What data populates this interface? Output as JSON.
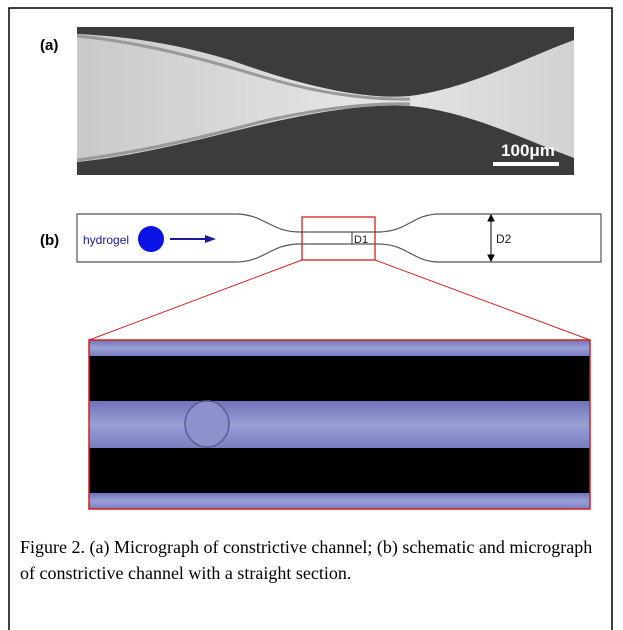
{
  "figure": {
    "panel_a": {
      "label": "(a)",
      "scale_bar": "100μm"
    },
    "panel_b": {
      "label": "(b)",
      "particle": "hydrogel",
      "narrow_width": "D1",
      "wide_width": "D2"
    },
    "caption": "Figure 2. (a) Micrograph of constrictive channel; (b) schematic and micrograph of constrictive channel with a straight section."
  }
}
